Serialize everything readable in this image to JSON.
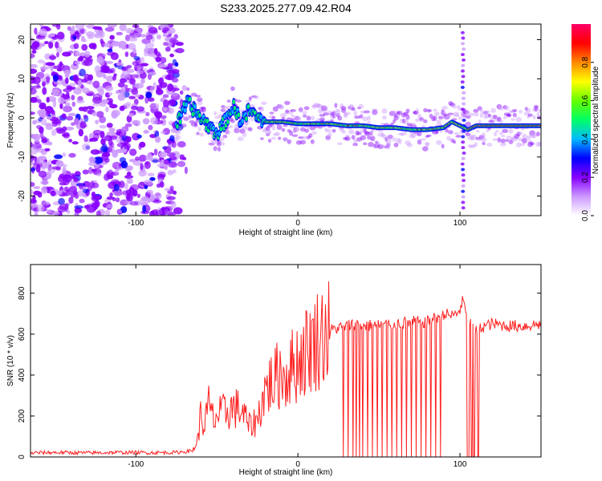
{
  "title": "S233.2025.277.09.42.R04",
  "chart_data": [
    {
      "type": "heatmap",
      "title": "S233.2025.277.09.42.R04",
      "xlabel": "Height of straight line (km)",
      "ylabel": "Frequency (Hz)",
      "xlim": [
        -165,
        150
      ],
      "ylim": [
        -25,
        24
      ],
      "xticks": [
        -100,
        0,
        100
      ],
      "xtick_labels": [
        "-100",
        "0",
        "100"
      ],
      "yticks": [
        -20,
        -10,
        0,
        10,
        20
      ],
      "ytick_labels": [
        "-20",
        "-10",
        "0",
        "10",
        "20"
      ],
      "noise_region_x": [
        -165,
        -75
      ],
      "signal_trace": {
        "x": [
          -75,
          -68,
          -60,
          -55,
          -50,
          -45,
          -40,
          -35,
          -30,
          -25,
          -20,
          -10,
          0,
          10,
          20,
          30,
          40,
          50,
          60,
          70,
          80,
          90,
          95,
          100,
          105,
          110,
          120,
          130,
          140,
          150
        ],
        "freq": [
          -2,
          4,
          0,
          -2,
          -4,
          -1,
          3,
          -1,
          2,
          0,
          -1,
          -1,
          -1.5,
          -1.5,
          -1.5,
          -2,
          -2,
          -2.5,
          -2.5,
          -3,
          -3,
          -2.5,
          -1,
          -2,
          -3,
          -2,
          -2,
          -2,
          -2,
          -2
        ]
      },
      "vertical_streak_x": 102,
      "colorbar": {
        "label": "Normalized spectral amplitude",
        "range": [
          0,
          1
        ],
        "ticks": [
          0.0,
          0.2,
          0.4,
          0.6,
          0.8
        ],
        "tick_labels": [
          "0.0",
          "0.2",
          "0.4",
          "0.6",
          "0.8"
        ],
        "colors": [
          "#ffffff",
          "#cc99ff",
          "#8800ff",
          "#0000ff",
          "#00bbff",
          "#00ff66",
          "#66ff00",
          "#ffff00",
          "#ff8800",
          "#ff0000",
          "#ff0066"
        ]
      }
    },
    {
      "type": "line",
      "xlabel": "Height of straight line (km)",
      "ylabel": "SNR (10 * v/v)",
      "xlim": [
        -165,
        150
      ],
      "ylim": [
        0,
        940
      ],
      "xticks": [
        -100,
        0,
        100
      ],
      "xtick_labels": [
        "-100",
        "0",
        "100"
      ],
      "yticks": [
        0,
        200,
        400,
        600,
        800
      ],
      "ytick_labels": [
        "0",
        "200",
        "400",
        "600",
        "800"
      ],
      "series": [
        {
          "name": "SNR",
          "color": "#ff2020",
          "x": [
            -165,
            -150,
            -130,
            -110,
            -90,
            -75,
            -65,
            -62,
            -60,
            -58,
            -55,
            -52,
            -50,
            -45,
            -40,
            -35,
            -30,
            -25,
            -22,
            -20,
            -18,
            -15,
            -12,
            -10,
            -8,
            -5,
            -2,
            0,
            2,
            5,
            10,
            15,
            20,
            25,
            30,
            35,
            40,
            50,
            60,
            70,
            80,
            90,
            95,
            98,
            100,
            102,
            104,
            106,
            110,
            115,
            120,
            130,
            140,
            150
          ],
          "values": [
            20,
            22,
            20,
            22,
            21,
            22,
            30,
            80,
            200,
            150,
            250,
            180,
            200,
            220,
            240,
            230,
            150,
            180,
            280,
            330,
            350,
            370,
            400,
            420,
            390,
            430,
            450,
            470,
            490,
            520,
            560,
            600,
            620,
            630,
            640,
            650,
            640,
            645,
            650,
            660,
            660,
            700,
            690,
            700,
            720,
            770,
            680,
            660,
            620,
            640,
            650,
            640,
            640,
            650
          ]
        }
      ],
      "dropouts_x": [
        28,
        31,
        34,
        36,
        38,
        40,
        43,
        46,
        49,
        52,
        55,
        58,
        61,
        64,
        67,
        70,
        73,
        76,
        79,
        82,
        85,
        88
      ],
      "dropout_band_x": [
        104,
        112
      ]
    }
  ]
}
